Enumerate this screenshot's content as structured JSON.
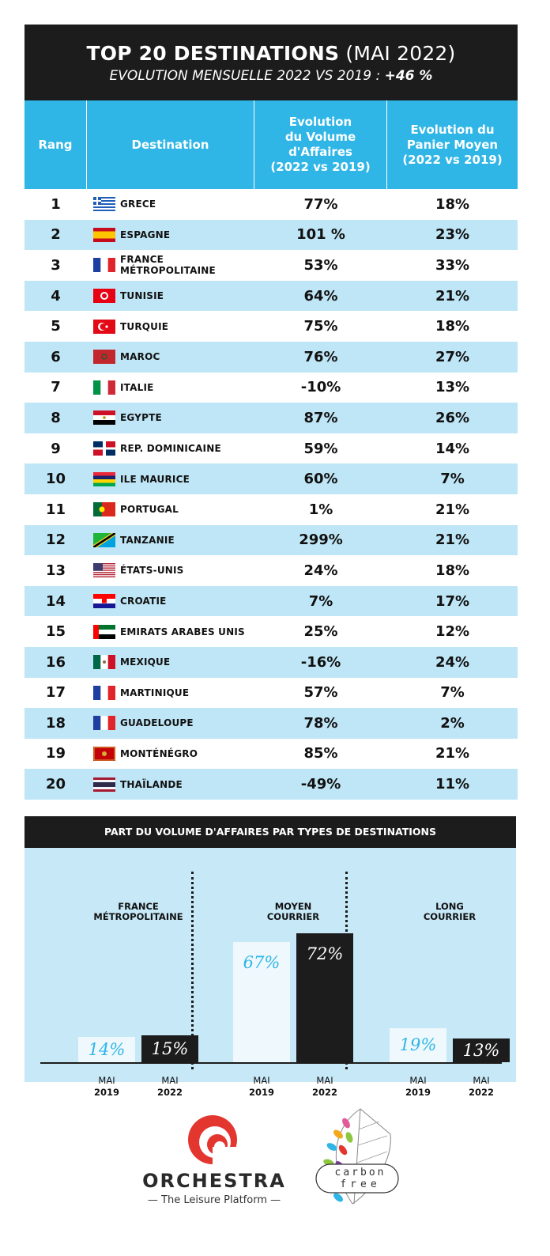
{
  "header": {
    "title_bold": "TOP 20 DESTINATIONS",
    "title_light": "(MAI 2022)",
    "subtitle": "EVOLUTION MENSUELLE 2022 VS 2019 :",
    "subtitle_value": "+46 %"
  },
  "table": {
    "col_rank": "Rang",
    "col_dest": "Destination",
    "col_vol": [
      "Evolution",
      "du Volume",
      "d'Affaires",
      "(2022 vs 2019)"
    ],
    "col_panier": [
      "Evolution du",
      "Panier Moyen",
      "(2022 vs 2019)"
    ],
    "rows": [
      {
        "rank": "1",
        "flag": "greece-flag",
        "name": "GRECE",
        "vol": "77%",
        "panier": "18%"
      },
      {
        "rank": "2",
        "flag": "spain-flag",
        "name": "ESPAGNE",
        "vol": "101 %",
        "panier": "23%"
      },
      {
        "rank": "3",
        "flag": "france-flag",
        "name": "FRANCE MÉTROPOLITAINE",
        "vol": "53%",
        "panier": "33%"
      },
      {
        "rank": "4",
        "flag": "tunisia-flag",
        "name": "TUNISIE",
        "vol": "64%",
        "panier": "21%"
      },
      {
        "rank": "5",
        "flag": "turkey-flag",
        "name": "TURQUIE",
        "vol": "75%",
        "panier": "18%"
      },
      {
        "rank": "6",
        "flag": "morocco-flag",
        "name": "MAROC",
        "vol": "76%",
        "panier": "27%"
      },
      {
        "rank": "7",
        "flag": "italy-flag",
        "name": "ITALIE",
        "vol": "-10%",
        "panier": "13%"
      },
      {
        "rank": "8",
        "flag": "egypt-flag",
        "name": "EGYPTE",
        "vol": "87%",
        "panier": "26%"
      },
      {
        "rank": "9",
        "flag": "dominican-flag",
        "name": "REP. DOMINICAINE",
        "vol": "59%",
        "panier": "14%"
      },
      {
        "rank": "10",
        "flag": "mauritius-flag",
        "name": "ILE MAURICE",
        "vol": "60%",
        "panier": "7%"
      },
      {
        "rank": "11",
        "flag": "portugal-flag",
        "name": "PORTUGAL",
        "vol": "1%",
        "panier": "21%"
      },
      {
        "rank": "12",
        "flag": "tanzania-flag",
        "name": "TANZANIE",
        "vol": "299%",
        "panier": "21%"
      },
      {
        "rank": "13",
        "flag": "usa-flag",
        "name": "ÉTATS-UNIS",
        "vol": "24%",
        "panier": "18%"
      },
      {
        "rank": "14",
        "flag": "croatia-flag",
        "name": "CROATIE",
        "vol": "7%",
        "panier": "17%"
      },
      {
        "rank": "15",
        "flag": "uae-flag",
        "name": "EMIRATS ARABES UNIS",
        "vol": "25%",
        "panier": "12%"
      },
      {
        "rank": "16",
        "flag": "mexico-flag",
        "name": "MEXIQUE",
        "vol": "-16%",
        "panier": "24%"
      },
      {
        "rank": "17",
        "flag": "france-flag",
        "name": "MARTINIQUE",
        "vol": "57%",
        "panier": "7%"
      },
      {
        "rank": "18",
        "flag": "france-flag",
        "name": "GUADELOUPE",
        "vol": "78%",
        "panier": "2%"
      },
      {
        "rank": "19",
        "flag": "montenegro-flag",
        "name": "MONTÉNÉGRO",
        "vol": "85%",
        "panier": "21%"
      },
      {
        "rank": "20",
        "flag": "thailand-flag",
        "name": "THAÏLANDE",
        "vol": "-49%",
        "panier": "11%"
      }
    ]
  },
  "chart_data": {
    "type": "bar",
    "title": "PART DU VOLUME D'AFFAIRES PAR TYPES DE DESTINATIONS",
    "groups": [
      {
        "label_lines": [
          "FRANCE",
          "MÉTROPOLITAINE"
        ]
      },
      {
        "label_lines": [
          "MOYEN",
          "COURRIER"
        ]
      },
      {
        "label_lines": [
          "LONG",
          "COURRIER"
        ]
      }
    ],
    "categories": [
      "FRANCE MÉTROPOLITAINE",
      "MOYEN COURRIER",
      "LONG COURRIER"
    ],
    "series": [
      {
        "name": "MAI 2019",
        "month": "MAI",
        "year": "2019",
        "values": [
          14,
          67,
          19
        ],
        "labels": [
          "14%",
          "67%",
          "19%"
        ]
      },
      {
        "name": "MAI 2022",
        "month": "MAI",
        "year": "2022",
        "values": [
          15,
          72,
          13
        ],
        "labels": [
          "15%",
          "72%",
          "13%"
        ]
      }
    ],
    "unit": "%",
    "colors": {
      "2019": "#eef8fd",
      "2022": "#1c1c1c",
      "label2019": "#2fb6e6"
    }
  },
  "footer": {
    "brand": "ORCHESTRA",
    "tagline": "The Leisure Platform",
    "carbon1": "carbon",
    "carbon2": "free"
  },
  "colors": {
    "accent": "#2fb6e6",
    "dark": "#1c1c1c",
    "light_row": "#bfe6f6",
    "logo_red": "#e3362f"
  }
}
